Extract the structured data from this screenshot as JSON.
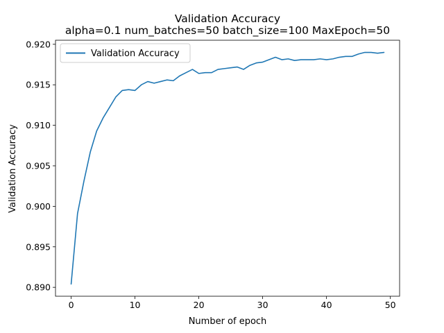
{
  "chart_data": {
    "type": "line",
    "title": "Validation Accuracy",
    "subtitle": "alpha=0.1 num_batches=50 batch_size=100 MaxEpoch=50",
    "xlabel": "Number of epoch",
    "ylabel": "Validation Accuracy",
    "xlim": [
      -2.45,
      51.45
    ],
    "ylim": [
      0.8889,
      0.9205
    ],
    "xticks": [
      0,
      10,
      20,
      30,
      40,
      50
    ],
    "xtick_labels": [
      "0",
      "10",
      "20",
      "30",
      "40",
      "50"
    ],
    "yticks": [
      0.89,
      0.895,
      0.9,
      0.905,
      0.91,
      0.915,
      0.92
    ],
    "ytick_labels": [
      "0.890",
      "0.895",
      "0.900",
      "0.905",
      "0.910",
      "0.915",
      "0.920"
    ],
    "grid": false,
    "legend_position": "upper-left",
    "series": [
      {
        "name": "Validation Accuracy",
        "color": "#1f77b4",
        "x": [
          0,
          1,
          2,
          3,
          4,
          5,
          6,
          7,
          8,
          9,
          10,
          11,
          12,
          13,
          14,
          15,
          16,
          17,
          18,
          19,
          20,
          21,
          22,
          23,
          24,
          25,
          26,
          27,
          28,
          29,
          30,
          31,
          32,
          33,
          34,
          35,
          36,
          37,
          38,
          39,
          40,
          41,
          42,
          43,
          44,
          45,
          46,
          47,
          48,
          49
        ],
        "y": [
          0.8904,
          0.8991,
          0.9031,
          0.9067,
          0.9093,
          0.9109,
          0.9122,
          0.9135,
          0.9143,
          0.9144,
          0.9143,
          0.915,
          0.9154,
          0.9152,
          0.9154,
          0.9156,
          0.9155,
          0.9161,
          0.9165,
          0.9169,
          0.9164,
          0.9165,
          0.9165,
          0.9169,
          0.917,
          0.9171,
          0.9172,
          0.9169,
          0.9174,
          0.9177,
          0.9178,
          0.9181,
          0.9184,
          0.9181,
          0.9182,
          0.918,
          0.9181,
          0.9181,
          0.9181,
          0.9182,
          0.9181,
          0.9182,
          0.9184,
          0.9185,
          0.9185,
          0.9188,
          0.919,
          0.919,
          0.9189,
          0.919
        ]
      }
    ]
  }
}
